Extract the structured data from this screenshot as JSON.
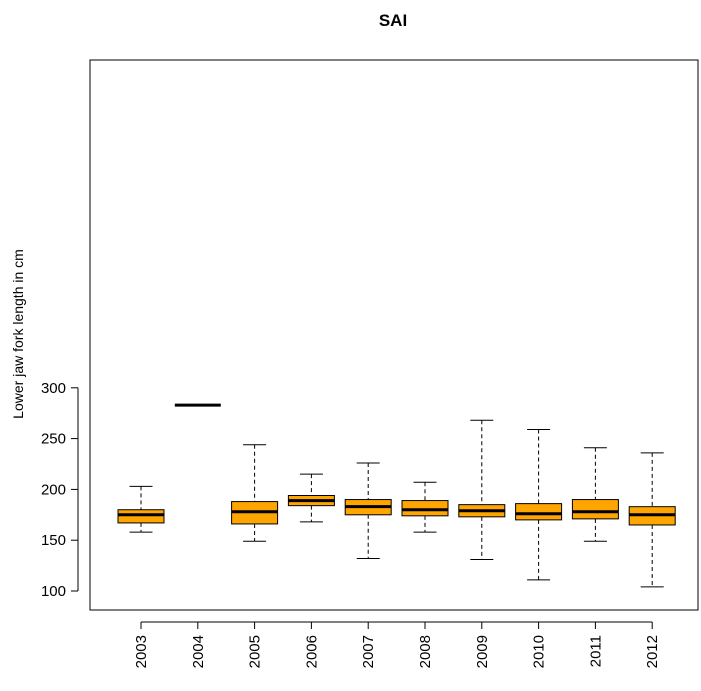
{
  "chart_data": {
    "type": "boxplot",
    "title": "SAI",
    "xlabel": "",
    "ylabel": "Lower jaw fork length in cm",
    "ylim": [
      92,
      303
    ],
    "y_ticks": [
      "100",
      "150",
      "200",
      "250",
      "300"
    ],
    "y_tick_values": [
      100,
      150,
      200,
      250,
      300
    ],
    "categories": [
      "2003",
      "2004",
      "2005",
      "2006",
      "2007",
      "2008",
      "2009",
      "2010",
      "2011",
      "2012"
    ],
    "boxes": [
      {
        "category": "2003",
        "min": 158,
        "q1": 167,
        "median": 175,
        "q3": 180,
        "max": 203
      },
      {
        "category": "2004",
        "min": 283,
        "q1": 283,
        "median": 283,
        "q3": 283,
        "max": 283
      },
      {
        "category": "2005",
        "min": 149,
        "q1": 166,
        "median": 178,
        "q3": 188,
        "max": 244
      },
      {
        "category": "2006",
        "min": 168,
        "q1": 184,
        "median": 189,
        "q3": 194,
        "max": 215
      },
      {
        "category": "2007",
        "min": 132,
        "q1": 175,
        "median": 183,
        "q3": 190,
        "max": 226
      },
      {
        "category": "2008",
        "min": 158,
        "q1": 174,
        "median": 180,
        "q3": 189,
        "max": 207
      },
      {
        "category": "2009",
        "min": 131,
        "q1": 173,
        "median": 179,
        "q3": 185,
        "max": 268
      },
      {
        "category": "2010",
        "min": 111,
        "q1": 170,
        "median": 176,
        "q3": 186,
        "max": 259
      },
      {
        "category": "2011",
        "min": 149,
        "q1": 171,
        "median": 178,
        "q3": 190,
        "max": 241
      },
      {
        "category": "2012",
        "min": 104,
        "q1": 165,
        "median": 175,
        "q3": 183,
        "max": 236
      }
    ],
    "box_color": "#FFA500",
    "grid": false,
    "legend": "none"
  }
}
